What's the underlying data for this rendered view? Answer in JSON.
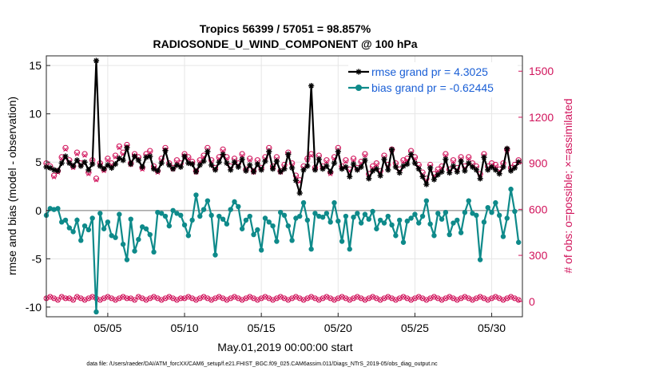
{
  "chart_data": {
    "type": "line",
    "title": "Tropics 56399 / 57051 = 98.857%",
    "subtitle": "RADIOSONDE_U_WIND_COMPONENT @ 100 hPa",
    "xlabel": "May.01,2019 00:00:00 start",
    "ylabel_left": "rmse and bias (model - observation)",
    "ylabel_right": "# of obs: o=possible; ×=assimilated",
    "footnote": "data file: /Users/raeder/DAI/ATM_forcXX/CAM6_setup/f.e21.FHIST_BGC.f09_025.CAM6assim.011/Diags_NTrS_2019-05/obs_diag_output.nc",
    "xlim": [
      1.0,
      32.0
    ],
    "ylim_left": [
      -11,
      16
    ],
    "ylim_right": [
      -100,
      1600
    ],
    "x_ticks": [
      {
        "value": 5,
        "label": "05/05"
      },
      {
        "value": 10,
        "label": "05/10"
      },
      {
        "value": 15,
        "label": "05/15"
      },
      {
        "value": 20,
        "label": "05/20"
      },
      {
        "value": 25,
        "label": "05/25"
      },
      {
        "value": 30,
        "label": "05/30"
      }
    ],
    "y_left_ticks": [
      {
        "value": -10,
        "label": "-10"
      },
      {
        "value": -5,
        "label": "-5"
      },
      {
        "value": 0,
        "label": "0"
      },
      {
        "value": 5,
        "label": "5"
      },
      {
        "value": 10,
        "label": "10"
      },
      {
        "value": 15,
        "label": "15"
      }
    ],
    "y_right_ticks": [
      {
        "value": 0,
        "label": "0"
      },
      {
        "value": 300,
        "label": "300"
      },
      {
        "value": 600,
        "label": "600"
      },
      {
        "value": 900,
        "label": "900"
      },
      {
        "value": 1200,
        "label": "1200"
      },
      {
        "value": 1500,
        "label": "1500"
      }
    ],
    "grid": true,
    "legend_position": "top-right",
    "colors": {
      "rmse": "#000000",
      "bias": "#0e8a8a",
      "obs": "#d1135b",
      "zero_line": "#a9a9a9",
      "grid": "#e6e6e6",
      "legend_text": "#1a5fd6"
    },
    "x": [
      1.0,
      1.25,
      1.5,
      1.75,
      2.0,
      2.25,
      2.5,
      2.75,
      3.0,
      3.25,
      3.5,
      3.75,
      4.0,
      4.25,
      4.5,
      4.75,
      5.0,
      5.25,
      5.5,
      5.75,
      6.0,
      6.25,
      6.5,
      6.75,
      7.0,
      7.25,
      7.5,
      7.75,
      8.0,
      8.25,
      8.5,
      8.75,
      9.0,
      9.25,
      9.5,
      9.75,
      10.0,
      10.25,
      10.5,
      10.75,
      11.0,
      11.25,
      11.5,
      11.75,
      12.0,
      12.25,
      12.5,
      12.75,
      13.0,
      13.25,
      13.5,
      13.75,
      14.0,
      14.25,
      14.5,
      14.75,
      15.0,
      15.25,
      15.5,
      15.75,
      16.0,
      16.25,
      16.5,
      16.75,
      17.0,
      17.25,
      17.5,
      17.75,
      18.0,
      18.25,
      18.5,
      18.75,
      19.0,
      19.25,
      19.5,
      19.75,
      20.0,
      20.25,
      20.5,
      20.75,
      21.0,
      21.25,
      21.5,
      21.75,
      22.0,
      22.25,
      22.5,
      22.75,
      23.0,
      23.25,
      23.5,
      23.75,
      24.0,
      24.25,
      24.5,
      24.75,
      25.0,
      25.25,
      25.5,
      25.75,
      26.0,
      26.25,
      26.5,
      26.75,
      27.0,
      27.25,
      27.5,
      27.75,
      28.0,
      28.25,
      28.5,
      28.75,
      29.0,
      29.25,
      29.5,
      29.75,
      30.0,
      30.25,
      30.5,
      30.75,
      31.0,
      31.25,
      31.5,
      31.75
    ],
    "series": [
      {
        "name": "rmse grand pr = 4.3025",
        "marker": "star",
        "values": [
          4.5,
          4.4,
          4.2,
          4.1,
          4.9,
          5.6,
          4.9,
          4.6,
          5.2,
          4.6,
          5.0,
          4.2,
          4.8,
          15.5,
          4.6,
          4.3,
          4.7,
          4.4,
          4.8,
          5.4,
          5.2,
          6.5,
          4.8,
          5.6,
          5.2,
          4.5,
          5.5,
          5.6,
          4.3,
          4.1,
          4.9,
          6.2,
          4.7,
          4.3,
          4.7,
          4.5,
          5.6,
          4.9,
          4.8,
          4.0,
          4.7,
          5.1,
          6.1,
          4.7,
          4.2,
          5.0,
          5.8,
          4.9,
          4.2,
          5.0,
          4.5,
          5.3,
          4.1,
          4.7,
          4.0,
          4.8,
          4.2,
          5.1,
          6.1,
          4.3,
          5.1,
          4.0,
          4.3,
          5.8,
          4.4,
          3.1,
          1.8,
          4.2,
          4.6,
          12.9,
          4.2,
          5.3,
          4.3,
          4.6,
          4.0,
          4.9,
          6.1,
          4.3,
          4.5,
          3.5,
          4.8,
          4.2,
          4.5,
          5.2,
          3.3,
          4.1,
          4.3,
          3.6,
          5.3,
          4.2,
          6.3,
          4.5,
          3.9,
          4.6,
          4.8,
          5.8,
          4.9,
          4.3,
          3.5,
          2.7,
          4.4,
          3.2,
          3.7,
          4.0,
          5.3,
          3.9,
          4.6,
          4.0,
          5.1,
          4.1,
          4.9,
          4.5,
          4.2,
          3.3,
          5.5,
          4.2,
          4.5,
          4.2,
          3.8,
          4.5,
          6.4,
          4.1,
          4.4,
          5.0
        ]
      },
      {
        "name": "bias grand pr = -0.62445",
        "marker": "circle",
        "values": [
          -0.5,
          0.2,
          0.1,
          0.2,
          -1.2,
          -1.0,
          -1.8,
          -2.2,
          -1.0,
          -3.1,
          -1.6,
          -2.0,
          -0.8,
          -10.5,
          -0.3,
          -1.9,
          -1.2,
          -2.6,
          -2.8,
          -0.4,
          -3.5,
          -5.1,
          -0.9,
          -4.2,
          -3.0,
          -1.7,
          -1.9,
          -2.5,
          -4.3,
          -0.2,
          -0.3,
          -0.6,
          -1.6,
          0.0,
          -0.3,
          -0.5,
          -1.5,
          -2.6,
          -1.0,
          1.6,
          -0.6,
          0.1,
          1.0,
          -0.5,
          -4.6,
          -0.6,
          -0.9,
          -1.4,
          0.1,
          0.9,
          0.4,
          -1.9,
          -1.0,
          -0.6,
          -2.5,
          -2.0,
          -4.1,
          -0.8,
          -1.2,
          -1.6,
          -3.2,
          -0.2,
          -0.5,
          -1.6,
          -3.1,
          -0.8,
          -0.6,
          0.8,
          -1.0,
          -4.0,
          -0.3,
          -0.6,
          -0.7,
          -0.3,
          -1.2,
          0.8,
          -1.1,
          -3.2,
          -0.6,
          -4.0,
          -0.7,
          -0.3,
          -1.3,
          -0.4,
          -0.9,
          -0.1,
          -1.9,
          -1.0,
          -1.3,
          -0.6,
          -1.5,
          -2.6,
          -1.0,
          -3.3,
          -1.1,
          -0.8,
          -0.4,
          -1.3,
          -0.6,
          1.0,
          -1.4,
          -2.6,
          -0.3,
          -0.9,
          -0.2,
          -2.5,
          -1.3,
          -1.0,
          -2.3,
          -0.2,
          1.0,
          -0.3,
          -0.5,
          -5.1,
          -1.2,
          0.3,
          -0.2,
          0.8,
          -0.5,
          -2.7,
          -0.8,
          2.2,
          -0.1,
          -3.3
        ]
      },
      {
        "name": "possible",
        "axis": "right",
        "marker": "o",
        "values": [
          900,
          880,
          820,
          850,
          940,
          1000,
          920,
          880,
          970,
          900,
          960,
          840,
          920,
          800,
          900,
          860,
          930,
          900,
          950,
          1010,
          970,
          1020,
          900,
          960,
          940,
          870,
          960,
          980,
          880,
          850,
          930,
          1000,
          900,
          870,
          920,
          900,
          960,
          940,
          910,
          850,
          920,
          950,
          1000,
          920,
          870,
          940,
          990,
          940,
          880,
          930,
          900,
          960,
          860,
          930,
          850,
          920,
          870,
          940,
          1000,
          880,
          940,
          850,
          890,
          970,
          900,
          820,
          790,
          880,
          930,
          960,
          870,
          950,
          880,
          920,
          840,
          940,
          1000,
          880,
          920,
          860,
          930,
          870,
          910,
          960,
          830,
          880,
          900,
          850,
          950,
          890,
          990,
          900,
          860,
          920,
          930,
          980,
          940,
          890,
          840,
          800,
          890,
          830,
          860,
          880,
          960,
          860,
          920,
          870,
          940,
          880,
          940,
          900,
          880,
          830,
          960,
          880,
          900,
          890,
          860,
          900,
          990,
          870,
          890,
          920
        ]
      },
      {
        "name": "assimilated",
        "axis": "right",
        "marker": "x",
        "values": [
          890,
          870,
          810,
          840,
          930,
          990,
          910,
          870,
          960,
          890,
          950,
          830,
          910,
          790,
          890,
          850,
          920,
          890,
          940,
          1000,
          960,
          1010,
          890,
          950,
          930,
          860,
          950,
          970,
          870,
          840,
          920,
          990,
          890,
          860,
          910,
          890,
          950,
          930,
          900,
          840,
          910,
          940,
          990,
          910,
          860,
          930,
          980,
          930,
          870,
          920,
          890,
          950,
          850,
          920,
          840,
          910,
          860,
          930,
          990,
          870,
          930,
          840,
          880,
          960,
          890,
          810,
          780,
          870,
          920,
          950,
          860,
          940,
          870,
          910,
          830,
          930,
          990,
          870,
          910,
          850,
          920,
          860,
          900,
          950,
          820,
          870,
          890,
          840,
          940,
          880,
          980,
          890,
          850,
          910,
          920,
          970,
          930,
          880,
          830,
          790,
          880,
          820,
          850,
          870,
          950,
          850,
          910,
          860,
          930,
          870,
          930,
          890,
          870,
          820,
          950,
          870,
          890,
          880,
          850,
          890,
          980,
          860,
          880,
          910
        ]
      },
      {
        "name": "obs_lower_row",
        "axis": "right",
        "marker": "x",
        "values": [
          20,
          30,
          20,
          10,
          30,
          20,
          20,
          10,
          30,
          20,
          10,
          20,
          30,
          20,
          10,
          20,
          30,
          20,
          10,
          20,
          30,
          20,
          20,
          10,
          30,
          20,
          10,
          20,
          30,
          20,
          10,
          20,
          30,
          20,
          10,
          20,
          20,
          30,
          20,
          10,
          20,
          30,
          20,
          10,
          20,
          30,
          20,
          10,
          20,
          30,
          20,
          10,
          20,
          30,
          20,
          10,
          20,
          30,
          20,
          10,
          20,
          30,
          20,
          10,
          20,
          30,
          20,
          10,
          20,
          30,
          20,
          10,
          20,
          30,
          20,
          10,
          20,
          30,
          20,
          10,
          20,
          30,
          20,
          10,
          20,
          30,
          20,
          10,
          20,
          30,
          20,
          10,
          20,
          30,
          20,
          10,
          20,
          30,
          20,
          10,
          20,
          30,
          20,
          10,
          20,
          30,
          20,
          10,
          20,
          30,
          20,
          10,
          20,
          30,
          20,
          10,
          20,
          30,
          20,
          10,
          20,
          30,
          20,
          10
        ]
      }
    ]
  }
}
